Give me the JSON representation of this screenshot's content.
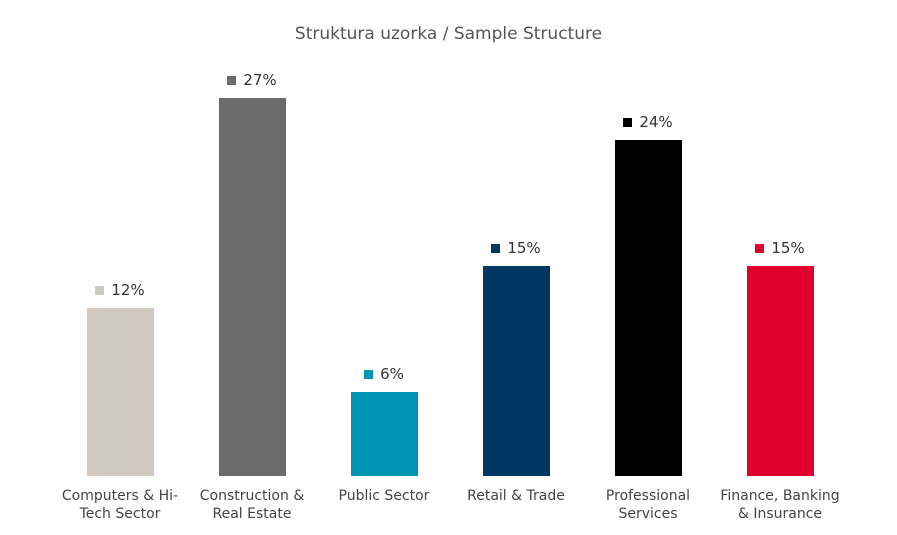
{
  "chart_data": {
    "type": "bar",
    "title": "Struktura uzorka / Sample Structure",
    "categories": [
      "Computers & Hi-Tech Sector",
      "Construction & Real Estate",
      "Public Sector",
      "Retail & Trade",
      "Professional Services",
      "Finance, Banking & Insurance"
    ],
    "values": [
      12,
      27,
      6,
      15,
      24,
      15
    ],
    "value_labels": [
      "12%",
      "27%",
      "6%",
      "15%",
      "24%",
      "15%"
    ],
    "colors": [
      "#cfc8be",
      "#6a6b6a",
      "#0096b4",
      "#003763",
      "#000000",
      "#e0002d"
    ]
  }
}
